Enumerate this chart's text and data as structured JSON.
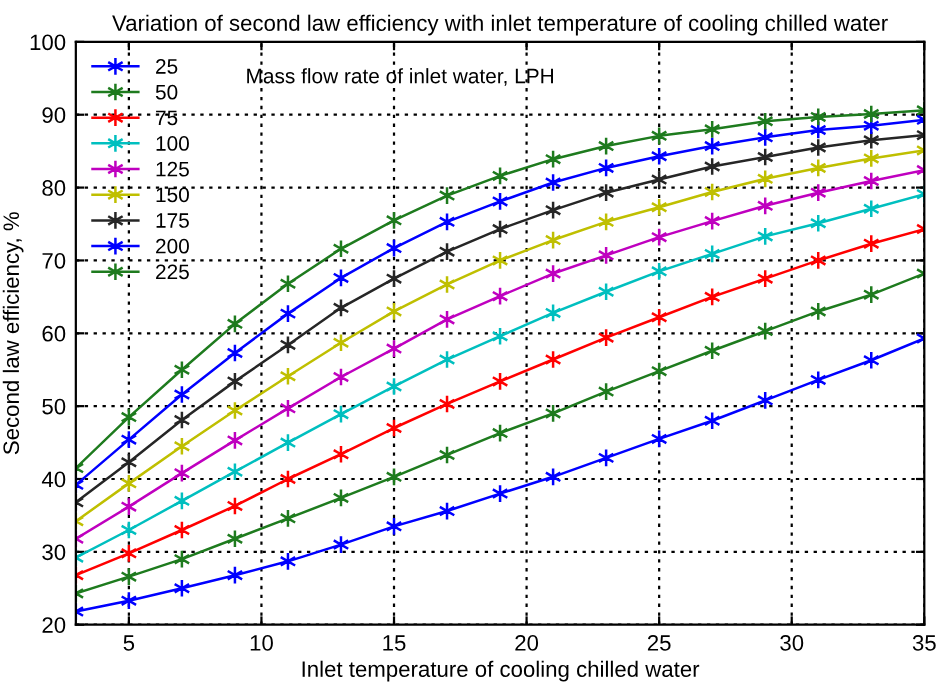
{
  "chart_data": {
    "type": "line",
    "title": "Variation of second law efficiency with inlet temperature of cooling chilled water",
    "xlabel": "Inlet temperature of cooling chilled water",
    "ylabel": "Second law efficiency, %",
    "legend_title": "Mass flow rate of inlet water, LPH",
    "x": [
      3,
      5,
      7,
      9,
      11,
      13,
      15,
      17,
      19,
      21,
      23,
      25,
      27,
      29,
      31,
      33,
      35
    ],
    "series": [
      {
        "name": "25",
        "color": "#0000ff",
        "values": [
          21.8,
          23.3,
          25,
          26.8,
          28.7,
          31,
          33.5,
          35.6,
          38,
          40.3,
          42.9,
          45.5,
          48,
          50.8,
          53.6,
          56.3,
          59.3
        ]
      },
      {
        "name": "50",
        "color": "#1e7b1e",
        "values": [
          24.3,
          26.6,
          29,
          31.8,
          34.6,
          37.4,
          40.3,
          43.3,
          46.3,
          49,
          52,
          54.8,
          57.6,
          60.3,
          63,
          65.3,
          68.2
        ]
      },
      {
        "name": "75",
        "color": "#ff0000",
        "values": [
          26.8,
          29.8,
          33,
          36.3,
          40,
          43.4,
          47,
          50.3,
          53.4,
          56.4,
          59.4,
          62.2,
          65,
          67.5,
          70,
          72.3,
          74.3
        ]
      },
      {
        "name": "100",
        "color": "#00bfbf",
        "values": [
          29.2,
          33,
          37,
          41,
          45,
          48.9,
          52.7,
          56.4,
          59.6,
          62.8,
          65.7,
          68.5,
          70.9,
          73.3,
          75.1,
          77.1,
          79.1
        ]
      },
      {
        "name": "125",
        "color": "#bf00bf",
        "values": [
          31.8,
          36.2,
          40.8,
          45.3,
          49.7,
          54,
          57.9,
          61.9,
          65.1,
          68.2,
          70.7,
          73.2,
          75.4,
          77.5,
          79.3,
          80.9,
          82.4
        ]
      },
      {
        "name": "150",
        "color": "#bfbf00",
        "values": [
          34.2,
          39.4,
          44.5,
          49.4,
          54.1,
          58.7,
          63,
          66.7,
          70,
          72.8,
          75.3,
          77.3,
          79.4,
          81.2,
          82.7,
          84,
          85.1
        ]
      },
      {
        "name": "175",
        "color": "#262626",
        "values": [
          36.8,
          42.3,
          48.1,
          53.4,
          58.4,
          63.5,
          67.5,
          71.2,
          74.3,
          76.9,
          79.3,
          81.1,
          82.9,
          84.2,
          85.5,
          86.5,
          87.2
        ]
      },
      {
        "name": "200",
        "color": "#0000ff",
        "values": [
          39.2,
          45.4,
          51.6,
          57.3,
          62.7,
          67.6,
          71.7,
          75.3,
          78.1,
          80.7,
          82.7,
          84.3,
          85.7,
          86.9,
          87.9,
          88.5,
          89.3
        ]
      },
      {
        "name": "225",
        "color": "#1e7b1e",
        "values": [
          41.5,
          48.5,
          55,
          61.3,
          66.8,
          71.6,
          75.5,
          78.9,
          81.6,
          83.9,
          85.7,
          87.1,
          88,
          89.1,
          89.7,
          90.1,
          90.6
        ]
      }
    ],
    "xlim": [
      3,
      35
    ],
    "ylim": [
      20,
      100
    ],
    "xticks": [
      5,
      10,
      15,
      20,
      25,
      30,
      35
    ],
    "yticks": [
      20,
      30,
      40,
      50,
      60,
      70,
      80,
      90,
      100
    ],
    "grid": true,
    "legend": "top left",
    "marker": "cross",
    "line_style": "solid"
  }
}
